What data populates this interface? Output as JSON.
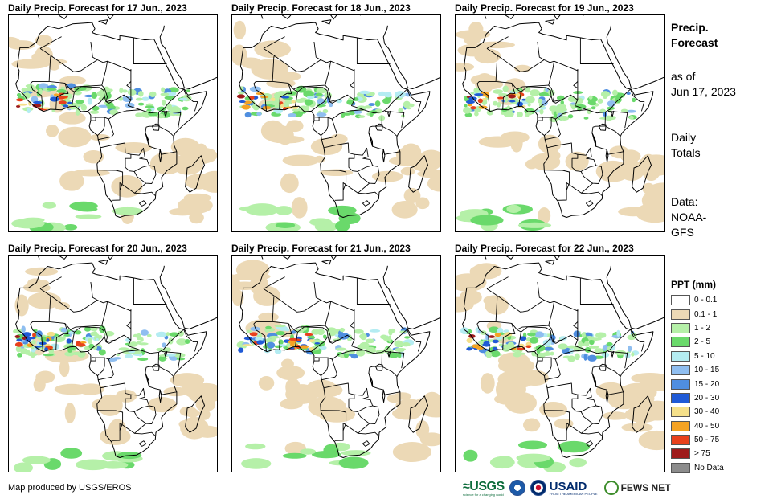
{
  "panels": [
    {
      "title": "Daily Precip. Forecast for 17 Jun., 2023",
      "seed": 17,
      "band_lat": 9,
      "heavy": 2
    },
    {
      "title": "Daily Precip. Forecast for 18 Jun., 2023",
      "seed": 18,
      "band_lat": 8,
      "heavy": 2
    },
    {
      "title": "Daily Precip. Forecast for 19 Jun., 2023",
      "seed": 19,
      "band_lat": 8,
      "heavy": 3
    },
    {
      "title": "Daily Precip. Forecast for 20 Jun., 2023",
      "seed": 20,
      "band_lat": 8,
      "heavy": 3
    },
    {
      "title": "Daily Precip. Forecast for 21 Jun., 2023",
      "seed": 21,
      "band_lat": 9,
      "heavy": 4
    },
    {
      "title": "Daily Precip. Forecast for 22 Jun., 2023",
      "seed": 22,
      "band_lat": 8,
      "heavy": 3
    }
  ],
  "side": {
    "title_line1": "Precip.",
    "title_line2": "Forecast",
    "asof_line1": "as of",
    "asof_line2": "Jun 17, 2023",
    "totals_line1": "Daily",
    "totals_line2": "Totals",
    "data_line1": "Data:",
    "data_line2": "NOAA-",
    "data_line3": "GFS"
  },
  "legend": {
    "title": "PPT (mm)",
    "items": [
      {
        "label": "0 - 0.1",
        "color": "#ffffff"
      },
      {
        "label": "0.1 - 1",
        "color": "#ecd9b6"
      },
      {
        "label": "1 - 2",
        "color": "#b5f0a8"
      },
      {
        "label": "2 - 5",
        "color": "#6ad96b"
      },
      {
        "label": "5 - 10",
        "color": "#b4ecf2"
      },
      {
        "label": "10 - 15",
        "color": "#8fbef0"
      },
      {
        "label": "15 - 20",
        "color": "#4f8ee0"
      },
      {
        "label": "20 - 30",
        "color": "#1f5ad6"
      },
      {
        "label": "30 - 40",
        "color": "#f5e08a"
      },
      {
        "label": "40 - 50",
        "color": "#f5a323"
      },
      {
        "label": "50 - 75",
        "color": "#e8411c"
      },
      {
        "label": "> 75",
        "color": "#9e1b1b"
      },
      {
        "label": "No Data",
        "color": "#8c8c8c"
      }
    ]
  },
  "credit": "Map produced by USGS/EROS",
  "logos": {
    "usgs": "≈USGS",
    "usgs_tagline": "science for a changing world",
    "usaid": "USAID",
    "usaid_tagline": "FROM THE AMERICAN PEOPLE",
    "fews": "FEWS NET"
  }
}
